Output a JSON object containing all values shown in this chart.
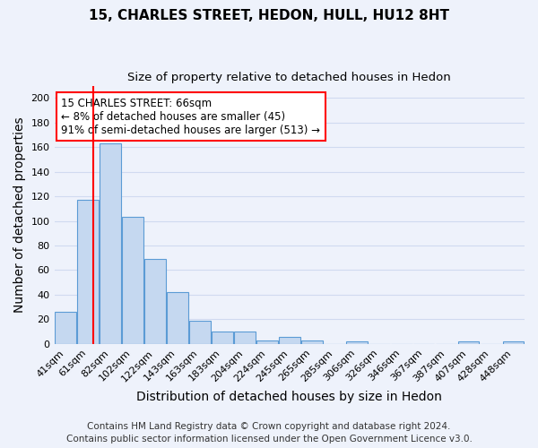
{
  "title": "15, CHARLES STREET, HEDON, HULL, HU12 8HT",
  "subtitle": "Size of property relative to detached houses in Hedon",
  "xlabel": "Distribution of detached houses by size in Hedon",
  "ylabel": "Number of detached properties",
  "categories": [
    "41sqm",
    "61sqm",
    "82sqm",
    "102sqm",
    "122sqm",
    "143sqm",
    "163sqm",
    "183sqm",
    "204sqm",
    "224sqm",
    "245sqm",
    "265sqm",
    "285sqm",
    "306sqm",
    "326sqm",
    "346sqm",
    "367sqm",
    "387sqm",
    "407sqm",
    "428sqm",
    "448sqm"
  ],
  "values": [
    26,
    117,
    163,
    103,
    69,
    42,
    19,
    10,
    10,
    3,
    6,
    3,
    0,
    2,
    0,
    0,
    0,
    0,
    2,
    0,
    2
  ],
  "bar_color": "#c5d8f0",
  "bar_edge_color": "#5b9bd5",
  "red_line_x": 1.25,
  "annotation_text": "15 CHARLES STREET: 66sqm\n← 8% of detached houses are smaller (45)\n91% of semi-detached houses are larger (513) →",
  "annotation_box_color": "white",
  "annotation_box_edge_color": "red",
  "ylim": [
    0,
    210
  ],
  "yticks": [
    0,
    20,
    40,
    60,
    80,
    100,
    120,
    140,
    160,
    180,
    200
  ],
  "footer1": "Contains HM Land Registry data © Crown copyright and database right 2024.",
  "footer2": "Contains public sector information licensed under the Open Government Licence v3.0.",
  "background_color": "#eef2fb",
  "grid_color": "#d0daf0",
  "title_fontsize": 11,
  "subtitle_fontsize": 9.5,
  "axis_label_fontsize": 10,
  "tick_fontsize": 8,
  "annotation_fontsize": 8.5,
  "footer_fontsize": 7.5
}
